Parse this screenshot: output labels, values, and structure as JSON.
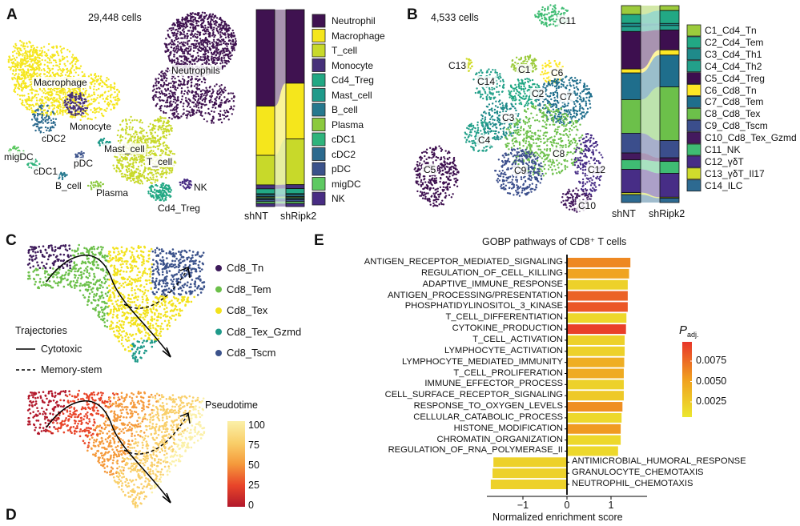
{
  "panel_a": {
    "letter": "A",
    "cell_count": "29,448 cells",
    "cluster_labels": [
      "Macrophage",
      "Neutrophils",
      "Monocyte",
      "cDC2",
      "migDC",
      "cDC1",
      "pDC",
      "Mast_cell",
      "T_cell",
      "B_cell",
      "Plasma",
      "NK",
      "Cd4_Treg"
    ],
    "groups": [
      "shNT",
      "shRipk2"
    ],
    "legend": [
      {
        "name": "Neutrophil",
        "color": "#3f1250"
      },
      {
        "name": "Macrophage",
        "color": "#f5e61c"
      },
      {
        "name": "T_cell",
        "color": "#c8d92a"
      },
      {
        "name": "Monocyte",
        "color": "#46307a"
      },
      {
        "name": "Cd4_Treg",
        "color": "#22a884"
      },
      {
        "name": "Mast_cell",
        "color": "#1f9a8a"
      },
      {
        "name": "B_cell",
        "color": "#26788e"
      },
      {
        "name": "Plasma",
        "color": "#8bc93e"
      },
      {
        "name": "cDC1",
        "color": "#2fb47c"
      },
      {
        "name": "cDC2",
        "color": "#2c6a8e"
      },
      {
        "name": "pDC",
        "color": "#3b528b"
      },
      {
        "name": "migDC",
        "color": "#5ec962"
      },
      {
        "name": "NK",
        "color": "#482c83"
      }
    ],
    "proportions": {
      "shNT": [
        0.49,
        0.25,
        0.15,
        0.02,
        0.025,
        0.005,
        0.01,
        0.005,
        0.005,
        0.005,
        0.01,
        0.01,
        0.015
      ],
      "shRipk2": [
        0.37,
        0.28,
        0.23,
        0.02,
        0.025,
        0.005,
        0.01,
        0.005,
        0.005,
        0.005,
        0.01,
        0.01,
        0.015
      ]
    }
  },
  "panel_b": {
    "letter": "B",
    "cell_count": "4,533 cells",
    "cluster_labels": [
      "C11",
      "C13",
      "C1",
      "C6",
      "C14",
      "C2",
      "C7",
      "C3",
      "C4",
      "C8",
      "C5",
      "C9",
      "C12",
      "C10"
    ],
    "groups": [
      "shNT",
      "shRipk2"
    ],
    "legend": [
      {
        "name": "C1_Cd4_Tn",
        "color": "#9ccb3c"
      },
      {
        "name": "C2_Cd4_Tem",
        "color": "#22a884"
      },
      {
        "name": "C3_Cd4_Th1",
        "color": "#1f8a8a"
      },
      {
        "name": "C4_Cd4_Th2",
        "color": "#23a08a"
      },
      {
        "name": "C5_Cd4_Treg",
        "color": "#3d0f4f"
      },
      {
        "name": "C6_Cd8_Tn",
        "color": "#fde725"
      },
      {
        "name": "C7_Cd8_Tem",
        "color": "#1f6e8c"
      },
      {
        "name": "C8_Cd8_Tex",
        "color": "#6cc04a"
      },
      {
        "name": "C9_Cd8_Tscm",
        "color": "#3b4e8c"
      },
      {
        "name": "C10_Cd8_Tex_Gzmd",
        "color": "#44195e"
      },
      {
        "name": "C11_NK",
        "color": "#3fbc73"
      },
      {
        "name": "C12_γδT",
        "color": "#472d86"
      },
      {
        "name": "C13_γδT_Il17",
        "color": "#d0dc2c"
      },
      {
        "name": "C14_ILC",
        "color": "#2d6a91"
      }
    ],
    "proportions": {
      "shNT": [
        0.045,
        0.045,
        0.016,
        0.025,
        0.19,
        0.02,
        0.135,
        0.17,
        0.1,
        0.035,
        0.048,
        0.118,
        0.01,
        0.04
      ],
      "shRipk2": [
        0.025,
        0.065,
        0.01,
        0.023,
        0.1,
        0.026,
        0.16,
        0.27,
        0.087,
        0.018,
        0.06,
        0.12,
        0.005,
        0.022
      ]
    }
  },
  "panel_c": {
    "letter": "C",
    "legend": [
      {
        "name": "Cd8_Tn",
        "color": "#3d1a5a"
      },
      {
        "name": "Cd8_Tem",
        "color": "#6cc04a"
      },
      {
        "name": "Cd8_Tex",
        "color": "#f2e21c"
      },
      {
        "name": "Cd8_Tex_Gzmd",
        "color": "#1f9a8a"
      },
      {
        "name": "Cd8_Tscm",
        "color": "#3b528b"
      }
    ],
    "trajectories_title": "Trajectories",
    "trajectories": [
      {
        "name": "Cytotoxic",
        "style": "solid"
      },
      {
        "name": "Memory-stem",
        "style": "dashed"
      }
    ]
  },
  "panel_d": {
    "letter": "D",
    "colorbar_title": "Pseudotime",
    "colorbar_ticks": [
      "100",
      "75",
      "50",
      "25",
      "0"
    ],
    "colors": [
      "#b2182b",
      "#e8452a",
      "#f59a3c",
      "#f9cf6a",
      "#fbf0a8"
    ]
  },
  "chart_data": {
    "type": "bar",
    "orientation": "horizontal",
    "panel_letter": "E",
    "title": "GOBP pathways of CD8⁺ T cells",
    "xlabel": "Normalized enrichment score",
    "xlim": [
      -1.9,
      1.9
    ],
    "xticks": [
      "−1",
      "0",
      "1"
    ],
    "colorbar_title": "P",
    "colorbar_subscript": "adj.",
    "colorbar_ticks": [
      "0.0075",
      "0.0050",
      "0.0025"
    ],
    "colorbar_range": [
      0,
      0.0095
    ],
    "colorbar_colors": [
      "#ece72e",
      "#f0a020",
      "#e8352a"
    ],
    "categories": [
      "ANTIGEN_RECEPTOR_MEDIATED_SIGNALING",
      "REGULATION_OF_CELL_KILLING",
      "ADAPTIVE_IMMUNE_RESPONSE",
      "ANTIGEN_PROCESSING/PRESENTATION",
      "PHOSPHATIDYLINOSITOL_3_KINASE",
      "T_CELL_DIFFERENTIATION",
      "CYTOKINE_PRODUCTION",
      "T_CELL_ACTIVATION",
      "LYMPHOCYTE_ACTIVATION",
      "LYMPHOCYTE_MEDIATED_IMMUNITY",
      "T_CELL_PROLIFERATION",
      "IMMUNE_EFFECTOR_PROCESS",
      "CELL_SURFACE_RECEPTOR_SIGNALING",
      "RESPONSE_TO_OXYGEN_LEVELS",
      "CELLULAR_CATABOLIC_PROCESS",
      "HISTONE_MODIFICATION",
      "CHROMATIN_ORGANIZATION",
      "REGULATION_OF_RNA_POLYMERASE_II",
      "ANTIMICROBIAL_HUMORAL_RESPONSE",
      "GRANULOCYTE_CHEMOTAXIS",
      "NEUTROPHIL_CHEMOTAXIS"
    ],
    "values": [
      1.44,
      1.41,
      1.38,
      1.38,
      1.38,
      1.35,
      1.34,
      1.31,
      1.31,
      1.3,
      1.29,
      1.29,
      1.29,
      1.26,
      1.24,
      1.22,
      1.22,
      1.16,
      -1.67,
      -1.69,
      -1.73
    ],
    "padj": [
      0.0058,
      0.0045,
      0.0015,
      0.0075,
      0.008,
      0.001,
      0.009,
      0.0015,
      0.0015,
      0.0038,
      0.004,
      0.0015,
      0.002,
      0.0055,
      0.001,
      0.005,
      0.001,
      0.001,
      0.0015,
      0.0015,
      0.0015
    ]
  }
}
